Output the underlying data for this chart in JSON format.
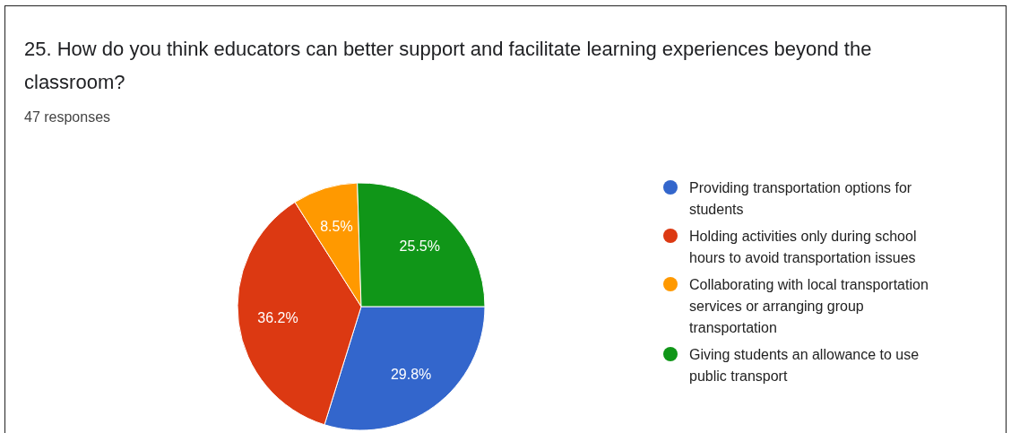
{
  "chart_data": {
    "type": "pie",
    "title": "25. How do you think educators can better support and facilitate learning experiences beyond the classroom?",
    "subtitle": "47 responses",
    "categories": [
      "Providing transportation options for students",
      "Holding activities only during school hours to avoid transportation issues",
      "Collaborating with local transportation services or arranging group transportation",
      "Giving students an allowance to use public transport"
    ],
    "values": [
      29.8,
      36.2,
      8.5,
      25.5
    ],
    "colors": [
      "#3366cc",
      "#dc3912",
      "#ff9900",
      "#109618"
    ],
    "value_labels": [
      "29.8%",
      "36.2%",
      "8.5%",
      "25.5%"
    ],
    "legend": "right"
  }
}
